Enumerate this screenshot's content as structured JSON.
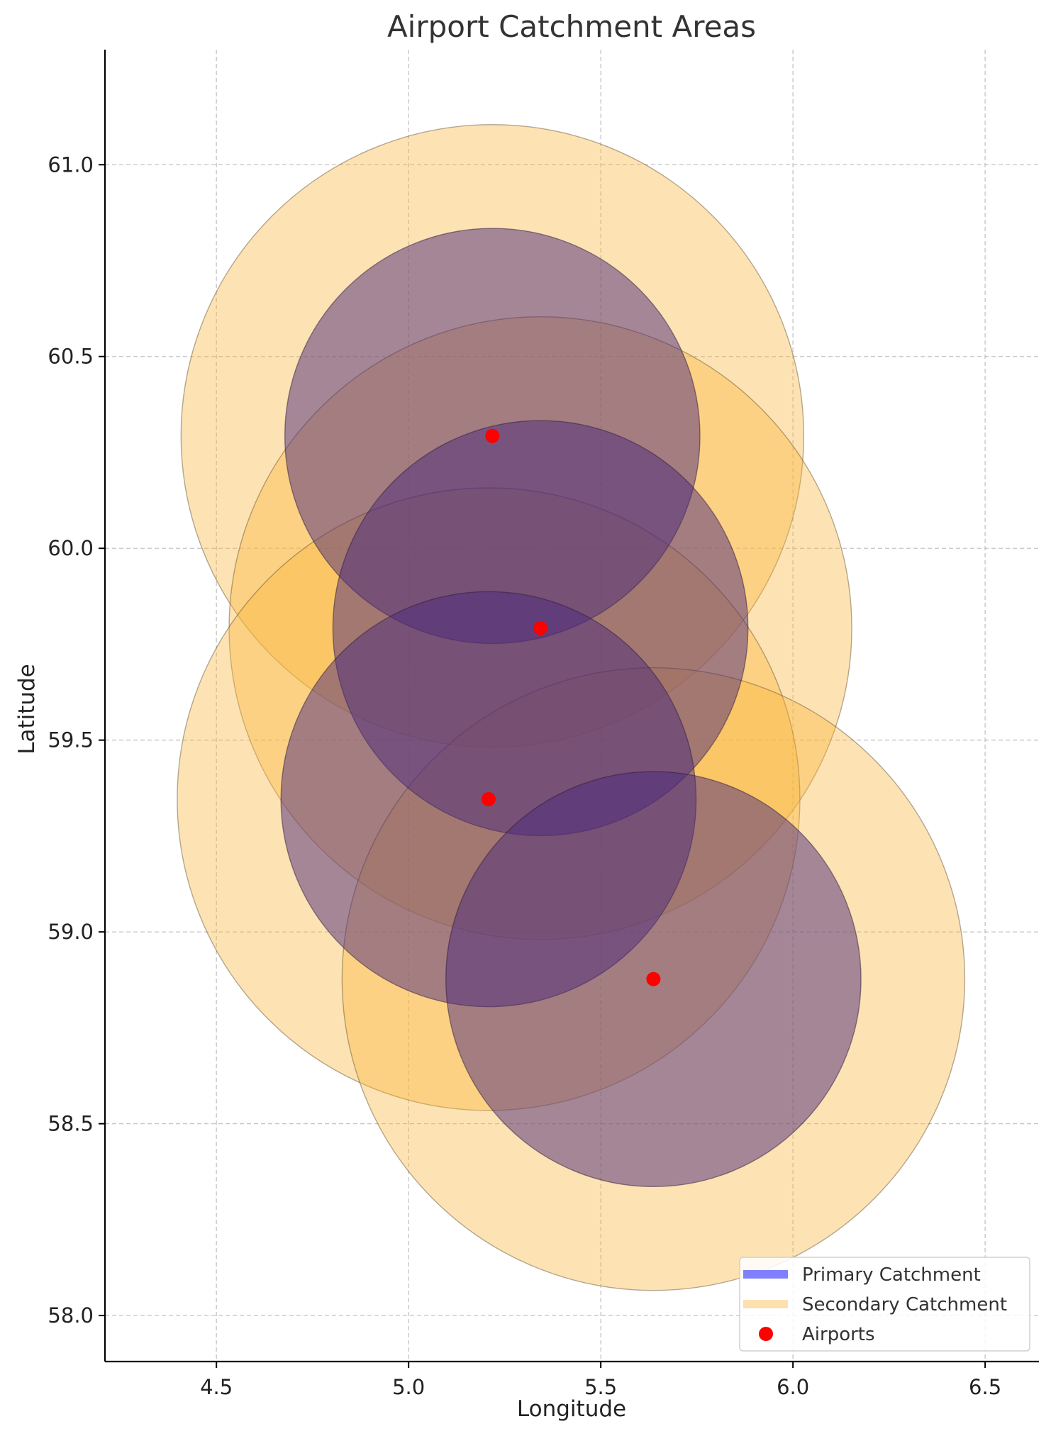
{
  "chart_data": {
    "type": "scatter",
    "title": "Airport Catchment Areas",
    "xlabel": "Longitude",
    "ylabel": "Latitude",
    "xlim": [
      4.21,
      6.64
    ],
    "ylim": [
      57.88,
      61.3
    ],
    "xticks": [
      4.5,
      5.0,
      5.5,
      6.0,
      6.5
    ],
    "yticks": [
      58.0,
      58.5,
      59.0,
      59.5,
      60.0,
      60.5,
      61.0
    ],
    "xtick_labels": [
      "4.5",
      "5.0",
      "5.5",
      "6.0",
      "6.5"
    ],
    "ytick_labels": [
      "58.0",
      "58.5",
      "59.0",
      "59.5",
      "60.0",
      "60.5",
      "61.0"
    ],
    "grid": true,
    "legend_position": "lower-right",
    "colors": {
      "primary_fill": "#4b2a7b",
      "secondary_fill": "#fbb638",
      "airport": "#ff0000",
      "primary_legend": "#8080ff",
      "secondary_legend": "#fde0b0"
    },
    "airports": [
      {
        "lon": 5.218,
        "lat": 60.293
      },
      {
        "lon": 5.343,
        "lat": 59.792
      },
      {
        "lon": 5.208,
        "lat": 59.346
      },
      {
        "lon": 5.637,
        "lat": 58.877
      }
    ],
    "primary_catchment_radius": 0.54,
    "secondary_catchment_radius": 0.81,
    "legend": [
      {
        "label": "Primary Catchment",
        "kind": "primary"
      },
      {
        "label": "Secondary Catchment",
        "kind": "secondary"
      },
      {
        "label": "Airports",
        "kind": "airport"
      }
    ]
  }
}
